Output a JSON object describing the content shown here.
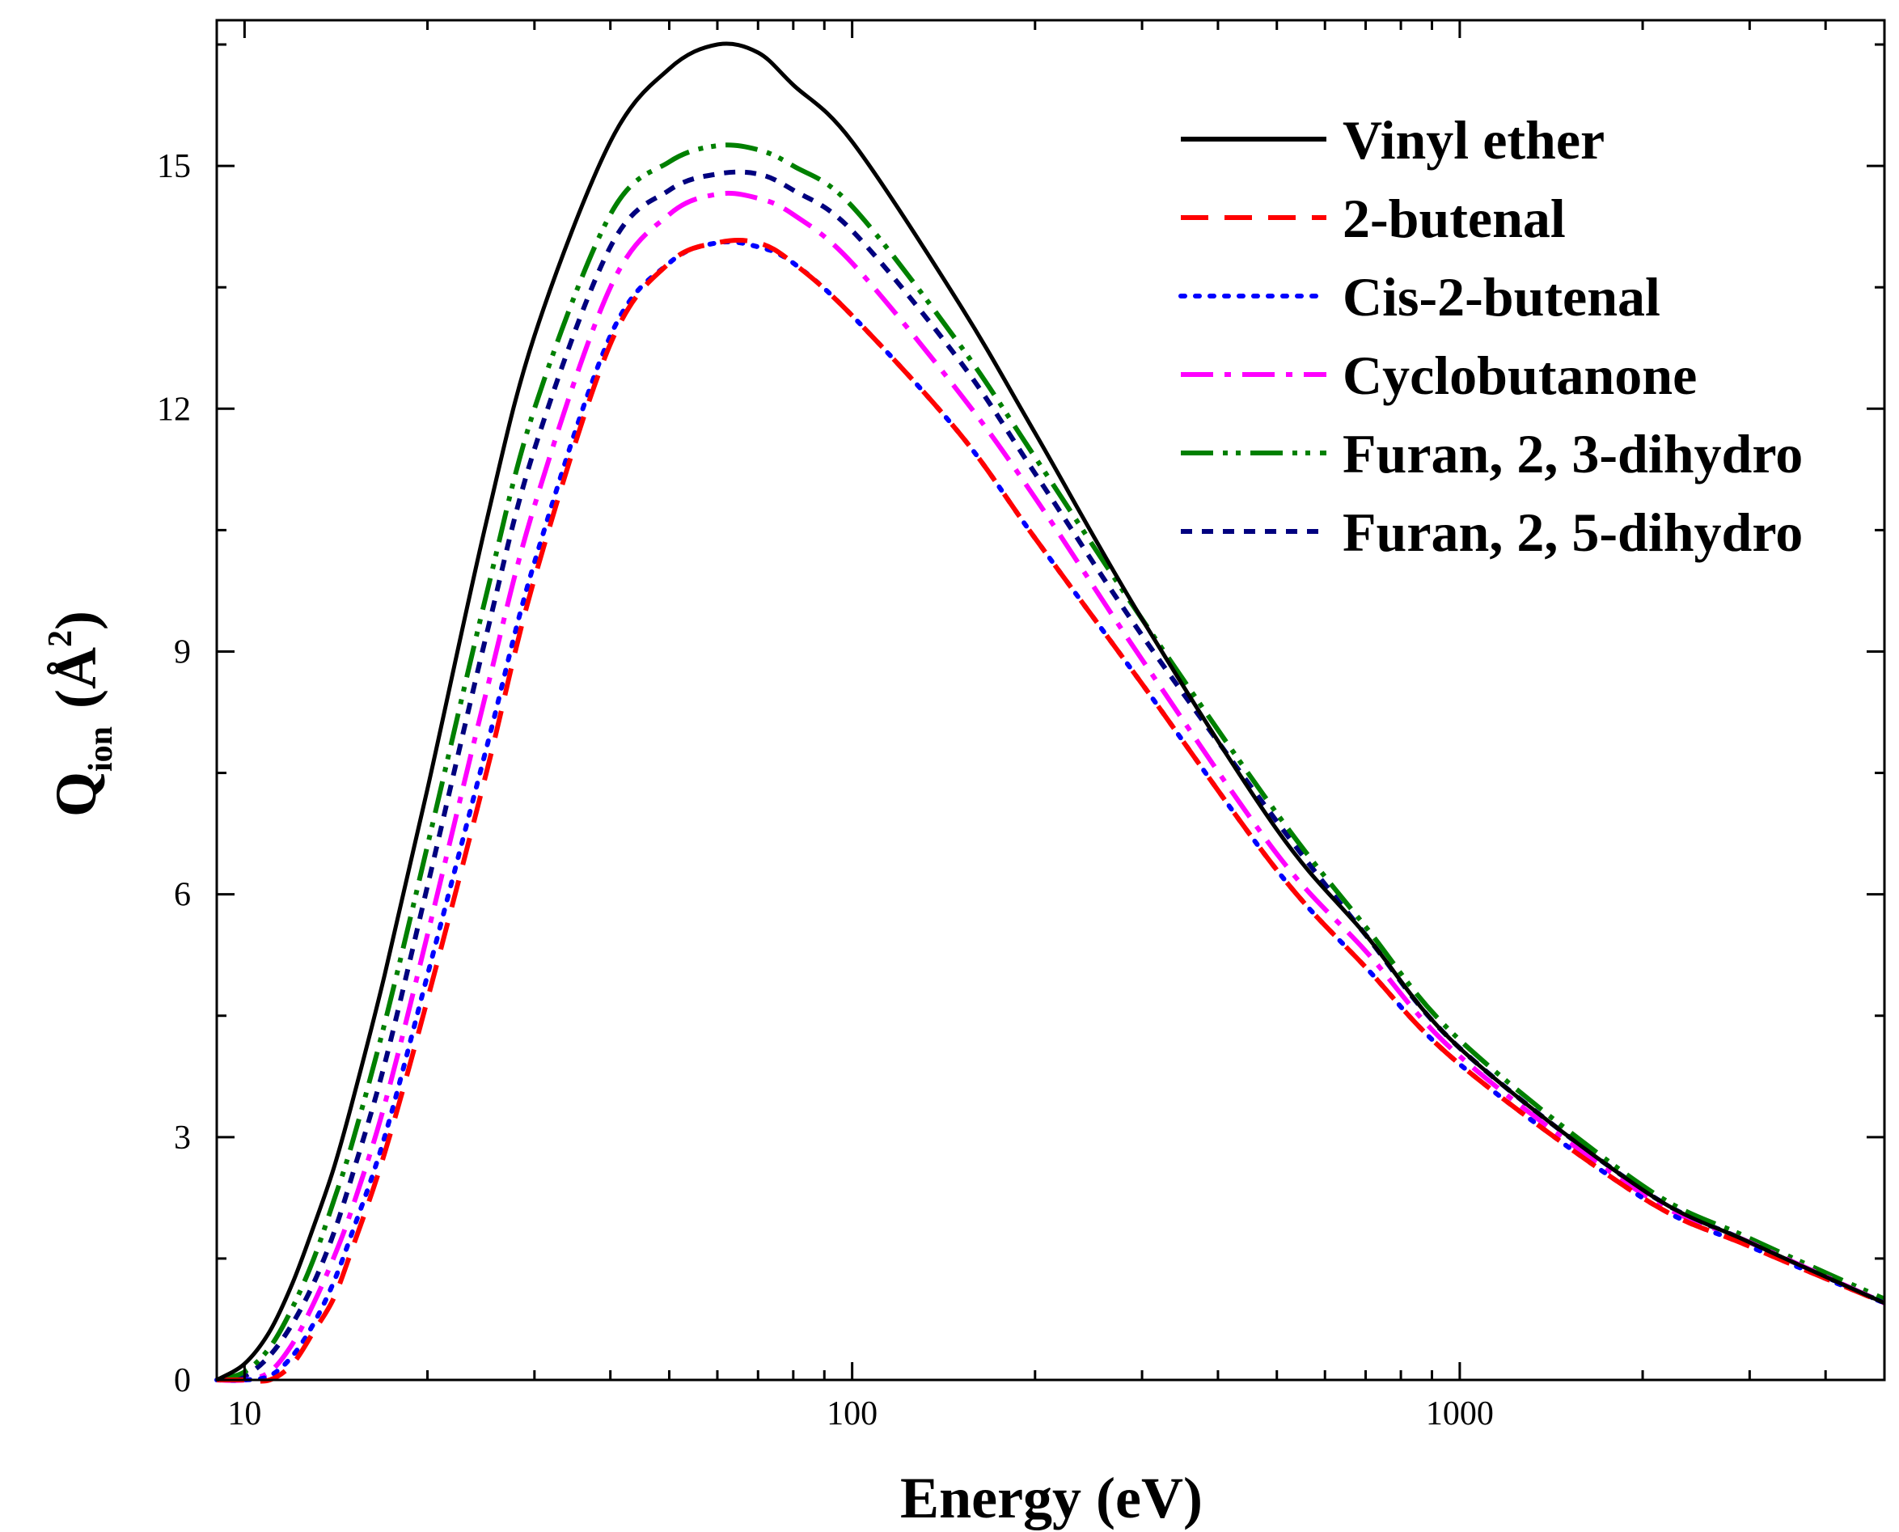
{
  "chart_data": {
    "type": "line",
    "title": "",
    "xlabel": "Energy (eV)",
    "ylabel": "Q",
    "ylabel_subscript": "ion",
    "ylabel_unit_main": "Å",
    "ylabel_unit_sup": "2",
    "ylabel_open": "(",
    "ylabel_close": ")",
    "xscale": "log",
    "xlim": [
      9,
      5000
    ],
    "ylim": [
      0,
      16.8
    ],
    "x_ticks": [
      10,
      100,
      1000
    ],
    "x_tick_labels": [
      "10",
      "100",
      "1000"
    ],
    "y_ticks": [
      0,
      3,
      6,
      9,
      12,
      15
    ],
    "y_tick_labels": [
      "0",
      "3",
      "6",
      "9",
      "12",
      "15"
    ],
    "grid": false,
    "legend_position": "top-right",
    "x": [
      9,
      10,
      11,
      12,
      13,
      14,
      15,
      17,
      20,
      25,
      30,
      40,
      50,
      60,
      70,
      80,
      100,
      150,
      200,
      300,
      500,
      700,
      1000,
      2000,
      3000,
      5000
    ],
    "series": [
      {
        "name": "Vinyl ether",
        "color": "#000000",
        "dash": "none",
        "values": [
          0,
          0.2,
          0.6,
          1.2,
          1.9,
          2.6,
          3.4,
          5.0,
          7.3,
          10.6,
          12.9,
          15.3,
          16.2,
          16.5,
          16.4,
          16.0,
          15.3,
          13.3,
          11.7,
          9.4,
          6.8,
          5.5,
          4.1,
          2.35,
          1.7,
          0.95
        ]
      },
      {
        "name": "2-butenal",
        "color": "#ff0000",
        "dash": "34 20",
        "values": [
          0,
          0,
          0,
          0.2,
          0.6,
          1.0,
          1.6,
          2.8,
          4.7,
          7.5,
          9.9,
          12.8,
          13.8,
          14.05,
          14.05,
          13.8,
          13.15,
          11.7,
          10.4,
          8.6,
          6.3,
          5.1,
          3.9,
          2.25,
          1.65,
          0.95
        ]
      },
      {
        "name": "Cis-2-butenal",
        "color": "#0000ff",
        "dash": "5 13",
        "values": [
          0,
          0,
          0.05,
          0.3,
          0.7,
          1.2,
          1.8,
          3.0,
          5.0,
          7.8,
          10.1,
          12.9,
          13.8,
          14.05,
          14.0,
          13.8,
          13.15,
          11.7,
          10.4,
          8.6,
          6.3,
          5.1,
          3.9,
          2.25,
          1.65,
          0.95
        ]
      },
      {
        "name": "Cyclobutanone",
        "color": "#ff00ff",
        "dash": "40 14 8 14",
        "values": [
          0,
          0,
          0.1,
          0.45,
          0.95,
          1.5,
          2.1,
          3.4,
          5.5,
          8.5,
          10.8,
          13.5,
          14.4,
          14.65,
          14.6,
          14.4,
          13.8,
          12.2,
          10.9,
          8.9,
          6.5,
          5.3,
          4.0,
          2.3,
          1.7,
          0.95
        ]
      },
      {
        "name": "Furan, 2, 3-dihydro",
        "color": "#008000",
        "dash": "40 12 6 10 6 12",
        "values": [
          0,
          0.1,
          0.4,
          0.9,
          1.5,
          2.2,
          2.9,
          4.4,
          6.6,
          9.7,
          12.0,
          14.4,
          15.05,
          15.25,
          15.2,
          15.0,
          14.5,
          12.8,
          11.4,
          9.4,
          7.0,
          5.6,
          4.2,
          2.4,
          1.75,
          1.0
        ]
      },
      {
        "name": "Furan, 2, 5-dihydro",
        "color": "#00007f",
        "dash": "14 12",
        "values": [
          0,
          0.05,
          0.3,
          0.7,
          1.2,
          1.8,
          2.5,
          3.9,
          6.1,
          9.2,
          11.5,
          14.0,
          14.7,
          14.9,
          14.9,
          14.7,
          14.2,
          12.6,
          11.2,
          9.2,
          6.9,
          5.5,
          4.1,
          2.35,
          1.7,
          0.95
        ]
      }
    ]
  }
}
